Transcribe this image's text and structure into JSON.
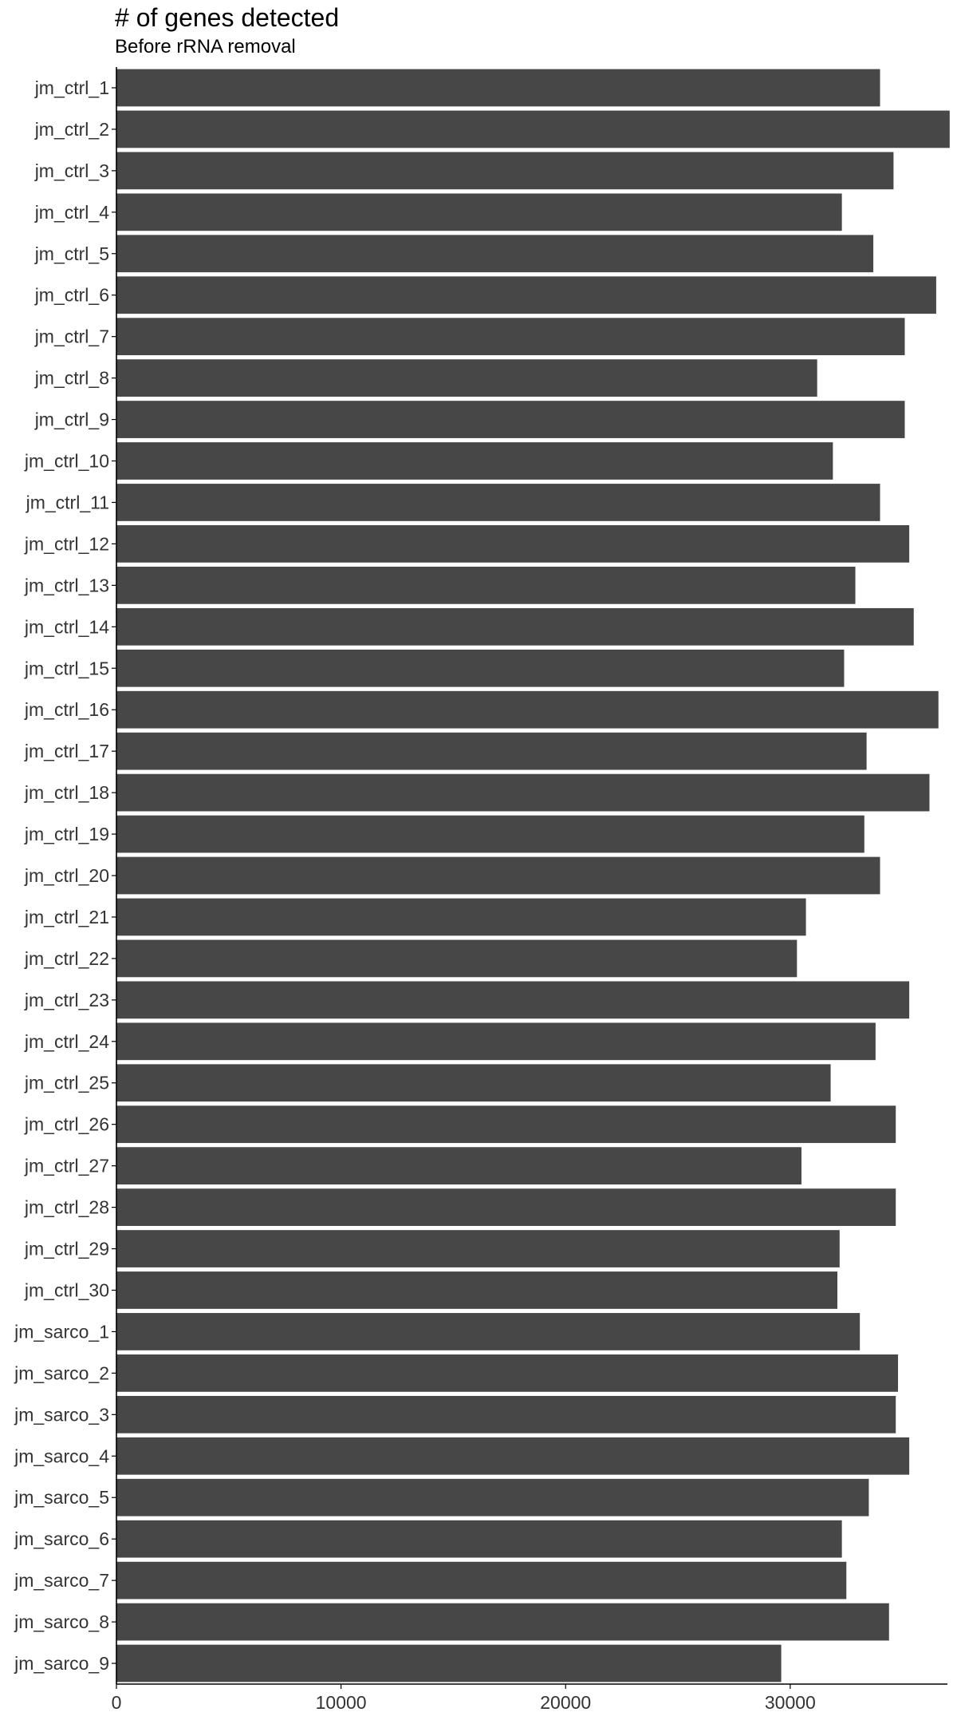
{
  "chart_data": {
    "type": "bar",
    "orientation": "horizontal",
    "title": "# of genes detected",
    "subtitle": "Before rRNA removal",
    "bar_color": "#474747",
    "axis_color": "#000000",
    "label_color": "#333333",
    "xlim": [
      0,
      37000
    ],
    "x_ticks": [
      0,
      10000,
      20000,
      30000
    ],
    "grid": false,
    "categories": [
      "jm_ctrl_1",
      "jm_ctrl_2",
      "jm_ctrl_3",
      "jm_ctrl_4",
      "jm_ctrl_5",
      "jm_ctrl_6",
      "jm_ctrl_7",
      "jm_ctrl_8",
      "jm_ctrl_9",
      "jm_ctrl_10",
      "jm_ctrl_11",
      "jm_ctrl_12",
      "jm_ctrl_13",
      "jm_ctrl_14",
      "jm_ctrl_15",
      "jm_ctrl_16",
      "jm_ctrl_17",
      "jm_ctrl_18",
      "jm_ctrl_19",
      "jm_ctrl_20",
      "jm_ctrl_21",
      "jm_ctrl_22",
      "jm_ctrl_23",
      "jm_ctrl_24",
      "jm_ctrl_25",
      "jm_ctrl_26",
      "jm_ctrl_27",
      "jm_ctrl_28",
      "jm_ctrl_29",
      "jm_ctrl_30",
      "jm_sarco_1",
      "jm_sarco_2",
      "jm_sarco_3",
      "jm_sarco_4",
      "jm_sarco_5",
      "jm_sarco_6",
      "jm_sarco_7",
      "jm_sarco_8",
      "jm_sarco_9"
    ],
    "values": [
      34000,
      37100,
      34600,
      32300,
      33700,
      36500,
      35100,
      31200,
      35100,
      31900,
      34000,
      35300,
      32900,
      35500,
      32400,
      36600,
      33400,
      36200,
      33300,
      34000,
      30700,
      30300,
      35300,
      33800,
      31800,
      34700,
      30500,
      34700,
      32200,
      32100,
      33100,
      34800,
      34700,
      35300,
      33500,
      32300,
      32500,
      34400,
      29600
    ]
  }
}
